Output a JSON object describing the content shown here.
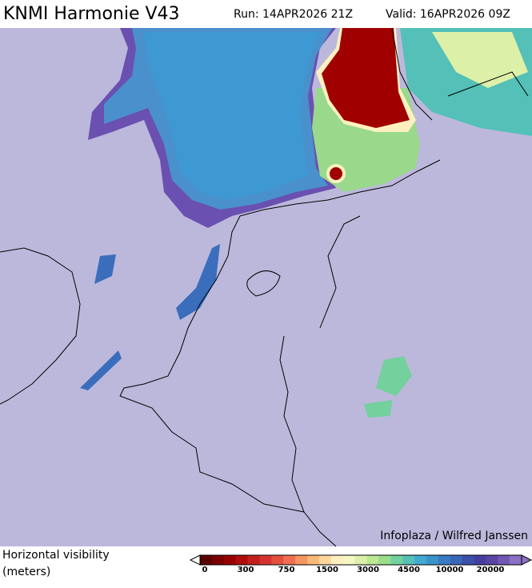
{
  "header": {
    "title": "KNMI Harmonie V43",
    "run": "Run: 14APR2026 21Z",
    "valid": "Valid: 16APR2026 09Z"
  },
  "credit": "Infoplaza / Wilfred Janssen",
  "legend": {
    "title_lines": [
      "Horizontal visibility",
      "(meters)"
    ],
    "colors": [
      "#5a0000",
      "#7a0000",
      "#960000",
      "#b00c0c",
      "#c41e1e",
      "#d63232",
      "#e4503e",
      "#ee7050",
      "#f69462",
      "#fbb878",
      "#fdd89a",
      "#fdf0c0",
      "#f4f8c4",
      "#dcf0a8",
      "#bce894",
      "#98dc8c",
      "#74d09c",
      "#54c0b8",
      "#42aad0",
      "#3a94cc",
      "#387cc4",
      "#3866ba",
      "#3a50aa",
      "#443ea0",
      "#5a44a4",
      "#7456b4",
      "#8c70c4"
    ],
    "labels": [
      0,
      300,
      750,
      1500,
      3000,
      4500,
      10000,
      20000
    ]
  }
}
